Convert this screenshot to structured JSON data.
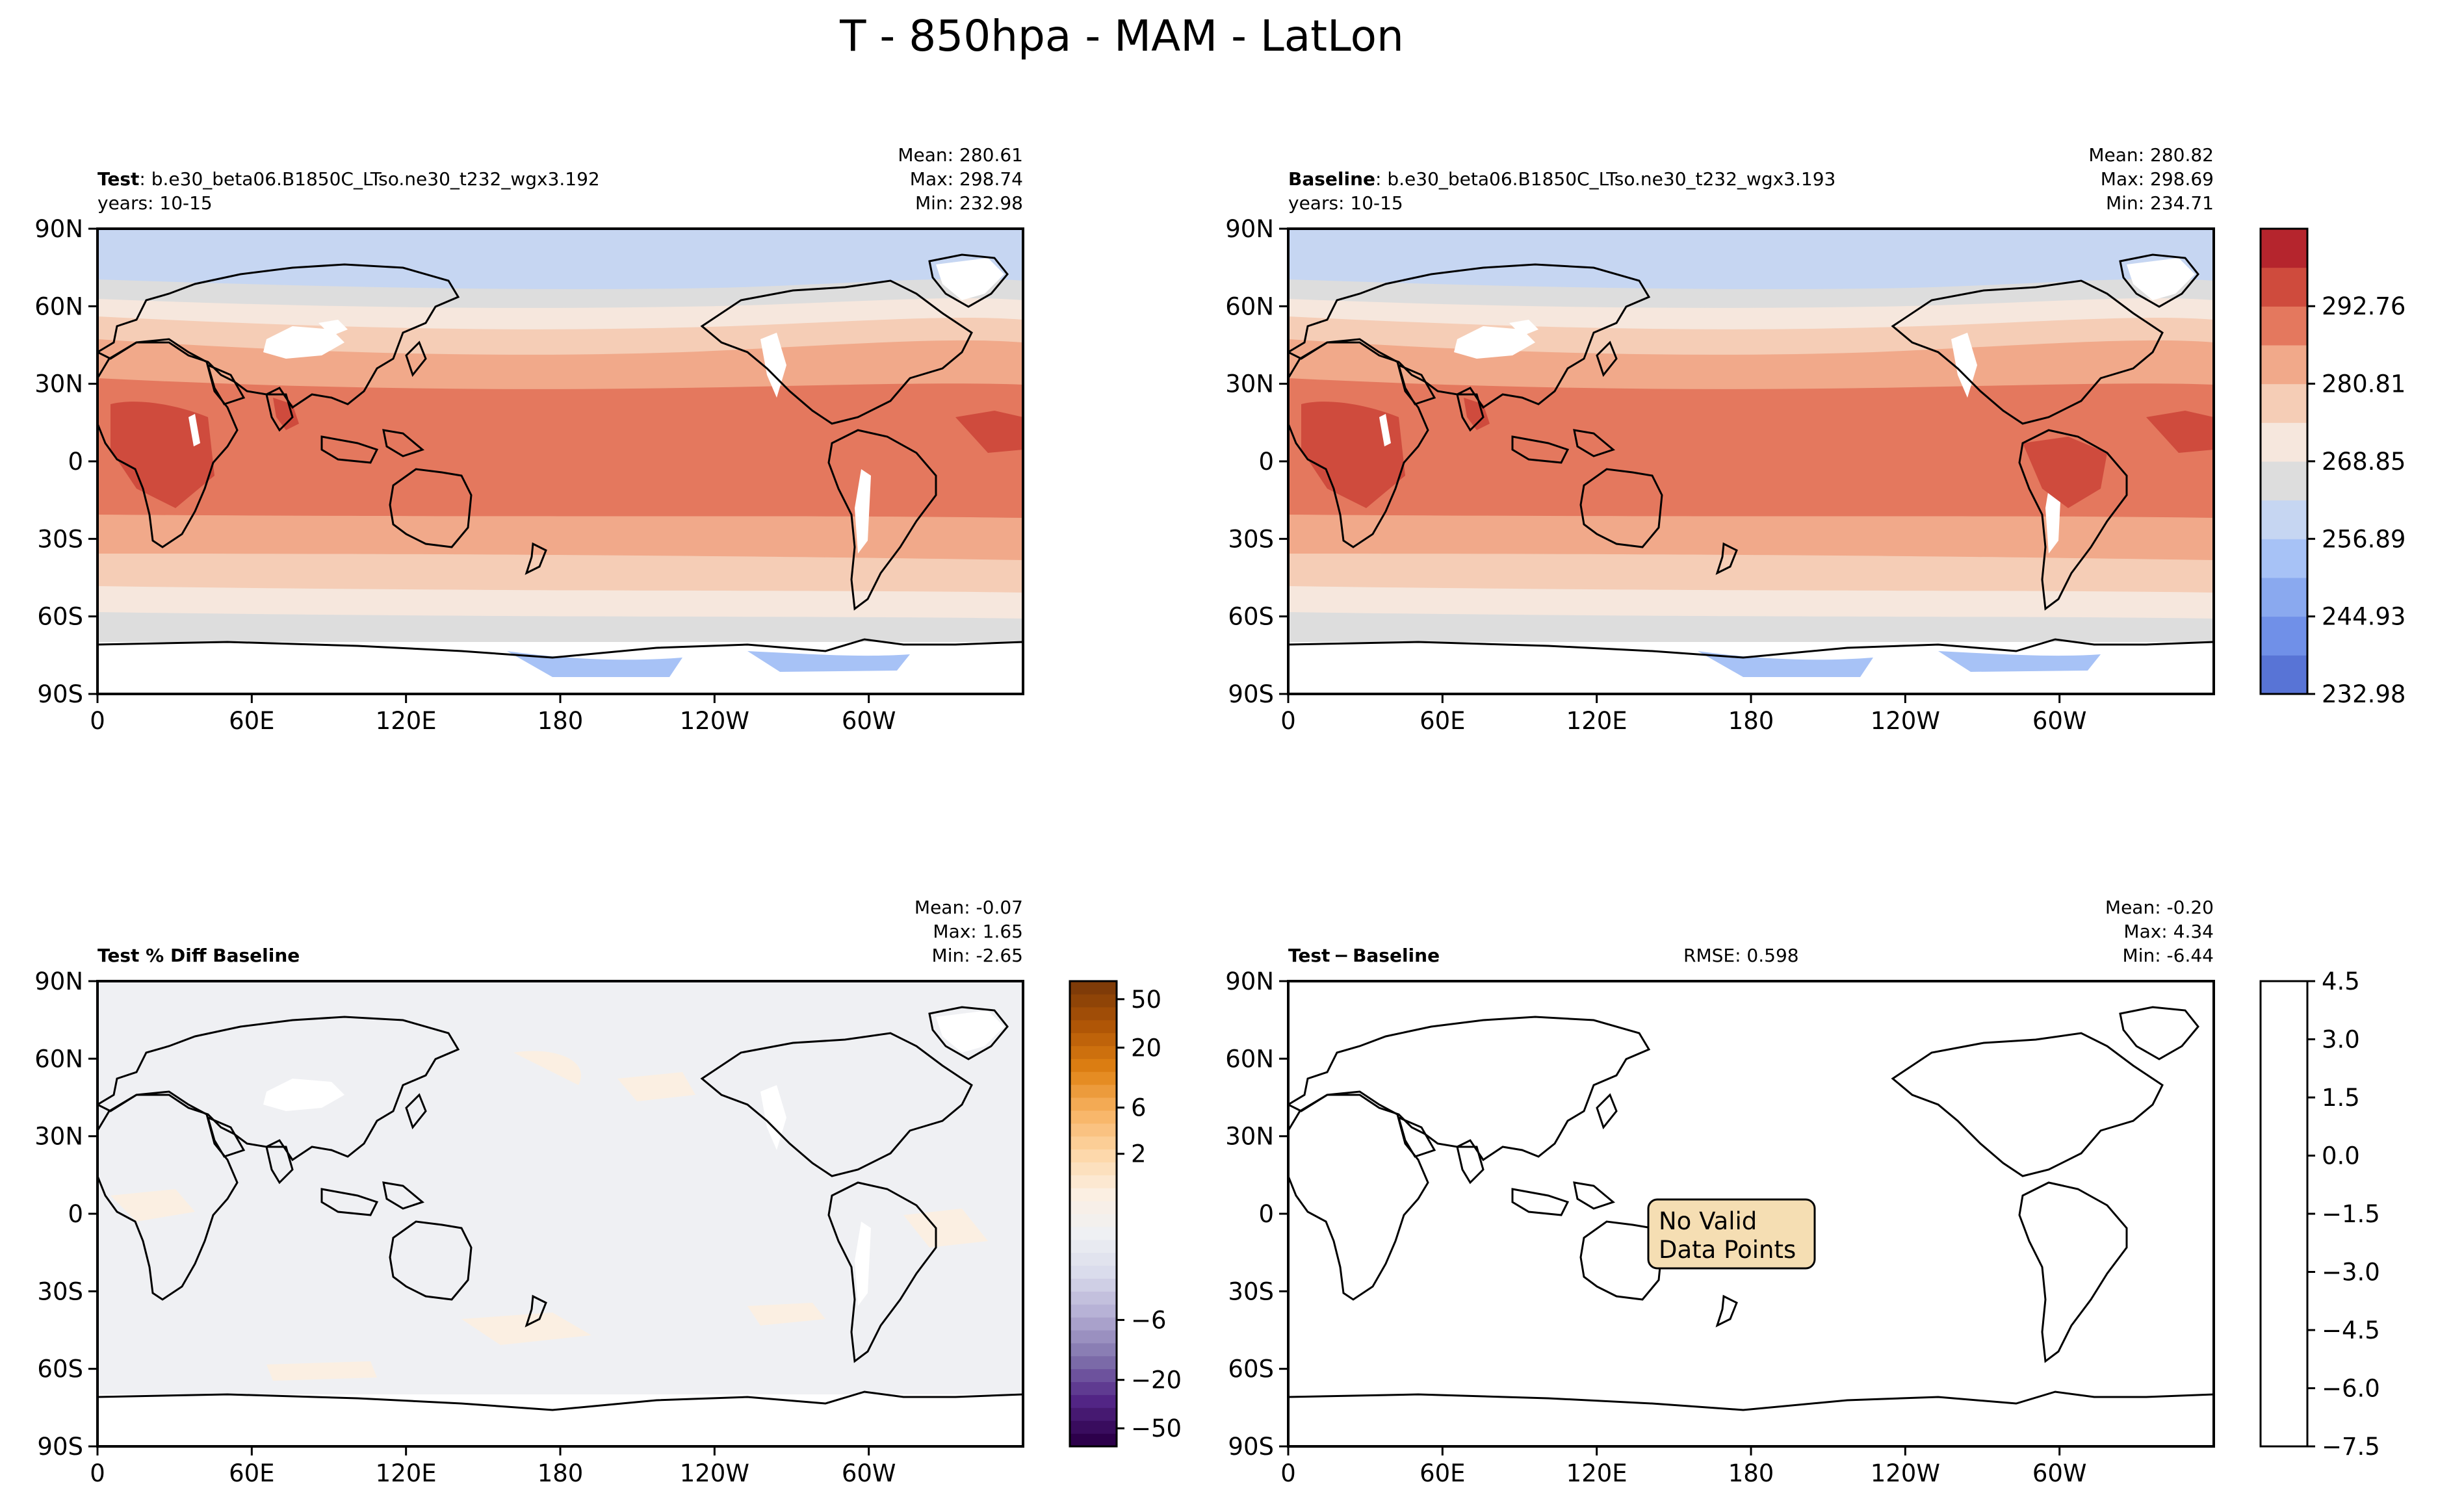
{
  "figure": {
    "title": "T - 850hpa - MAM - LatLon"
  },
  "axes": {
    "lat_ticks": [
      "90N",
      "60N",
      "30N",
      "0",
      "30S",
      "60S",
      "90S"
    ],
    "lon_ticks": [
      "0",
      "60E",
      "120E",
      "180",
      "120W",
      "60W"
    ]
  },
  "colors": {
    "warm": [
      "#f6e7dd",
      "#f5cdb6",
      "#f1a98a",
      "#e4785e",
      "#cf4b3d",
      "#b5252d"
    ],
    "cool": [
      "#dddddd",
      "#c6d6f2",
      "#a7c2f6",
      "#8aa9ef",
      "#7090e8",
      "#5874d6"
    ],
    "pct_diff_scale": [
      "#2d004b",
      "#542788",
      "#8073ac",
      "#b2abd2",
      "#d8daeb",
      "#eff0f3",
      "#fbefe2",
      "#fdd6a6",
      "#f7b261",
      "#e08214",
      "#b35806",
      "#7f3b08"
    ],
    "no_data_box": "#f5deb3"
  },
  "chart_data": [
    {
      "type": "heatmap",
      "panel": "test",
      "label_bold": "Test",
      "case": ": b.e30_beta06.B1850C_LTso.ne30_t232_wgx3.192",
      "years": "years: 10-15",
      "stats": {
        "mean": "Mean: 280.61",
        "max": "Max: 298.74",
        "min": "Min: 232.98"
      },
      "lat_range": [
        -90,
        90
      ],
      "lon_range": [
        0,
        360
      ],
      "field": "T 850hPa (K)"
    },
    {
      "type": "heatmap",
      "panel": "baseline",
      "label_bold": "Baseline",
      "case": ": b.e30_beta06.B1850C_LTso.ne30_t232_wgx3.193",
      "years": "years: 10-15",
      "stats": {
        "mean": "Mean: 280.82",
        "max": "Max: 298.69",
        "min": "Min: 234.71"
      },
      "lat_range": [
        -90,
        90
      ],
      "lon_range": [
        0,
        360
      ],
      "colorbar": {
        "ticks": [
          "292.76",
          "280.81",
          "268.85",
          "256.89",
          "244.93",
          "232.98"
        ],
        "values": [
          292.76,
          280.81,
          268.85,
          256.89,
          244.93,
          232.98
        ],
        "range": [
          232.98,
          304.7
        ]
      }
    },
    {
      "type": "heatmap",
      "panel": "pct_diff",
      "label_bold": "Test % Diff Baseline",
      "stats": {
        "mean": "Mean: -0.07",
        "max": "Max:  1.65",
        "min": "Min: -2.65"
      },
      "lat_range": [
        -90,
        90
      ],
      "lon_range": [
        0,
        360
      ],
      "colorbar": {
        "ticks": [
          "50",
          "20",
          "6",
          "2",
          "−6",
          "−20",
          "−50"
        ],
        "values": [
          50,
          20,
          6,
          2,
          -6,
          -20,
          -50
        ]
      }
    },
    {
      "type": "heatmap",
      "panel": "difference",
      "label_bold": "Test − Baseline",
      "rmse": "RMSE: 0.598",
      "stats": {
        "mean": "Mean: -0.20",
        "max": "Max:  4.34",
        "min": "Min: -6.44"
      },
      "note_line1": "No Valid",
      "note_line2": "Data Points",
      "lat_range": [
        -90,
        90
      ],
      "lon_range": [
        0,
        360
      ],
      "colorbar": {
        "ticks": [
          "4.5",
          "3.0",
          "1.5",
          "0.0",
          "−1.5",
          "−3.0",
          "−4.5",
          "−6.0",
          "−7.5"
        ],
        "values": [
          4.5,
          3.0,
          1.5,
          0.0,
          -1.5,
          -3.0,
          -4.5,
          -6.0,
          -7.5
        ],
        "range": [
          -7.5,
          4.5
        ]
      }
    }
  ]
}
